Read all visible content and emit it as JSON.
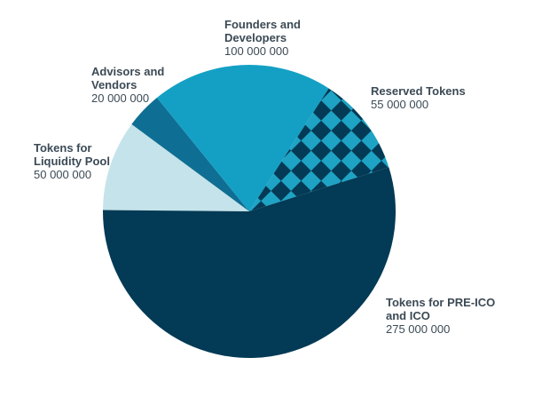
{
  "chart_data": {
    "type": "pie",
    "title": "",
    "slices": [
      {
        "name": "Tokens for\nLiquidity Pool",
        "display_value": "50 000 000",
        "value": 50000000,
        "color": "#c5e3ea",
        "pattern": "none"
      },
      {
        "name": "Advisors and\nVendors",
        "display_value": "20 000 000",
        "value": 20000000,
        "color": "#0f6e93",
        "pattern": "none"
      },
      {
        "name": "Founders and\nDevelopers",
        "display_value": "100 000 000",
        "value": 100000000,
        "color": "#14a0c4",
        "pattern": "none"
      },
      {
        "name": "Reserved Tokens",
        "display_value": "55 000 000",
        "value": 55000000,
        "color": "#1ea3c4",
        "pattern": "checker",
        "pattern_color": "#033a55"
      },
      {
        "name": "Tokens for PRE-ICO\nand ICO",
        "display_value": "275 000 000",
        "value": 275000000,
        "color": "#033a55",
        "pattern": "none"
      }
    ]
  }
}
